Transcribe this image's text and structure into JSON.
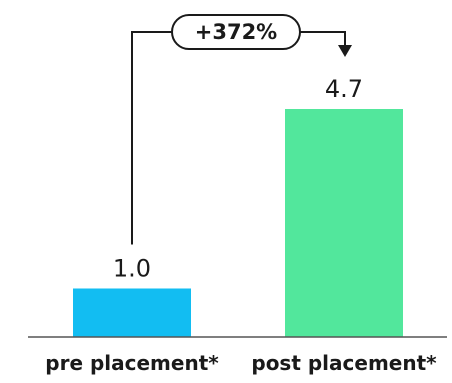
{
  "chart_data": {
    "type": "bar",
    "categories": [
      "pre placement*",
      "post placement*"
    ],
    "values": [
      1.0,
      4.7
    ],
    "value_labels": [
      "1.0",
      "4.7"
    ],
    "colors": [
      "#12bdf2",
      "#52e79c"
    ],
    "annotation": {
      "text": "+372%",
      "from": 0,
      "to": 1
    },
    "title": "",
    "xlabel": "",
    "ylabel": "",
    "ylim": [
      0,
      4.7
    ],
    "grid": false,
    "legend": "none"
  }
}
